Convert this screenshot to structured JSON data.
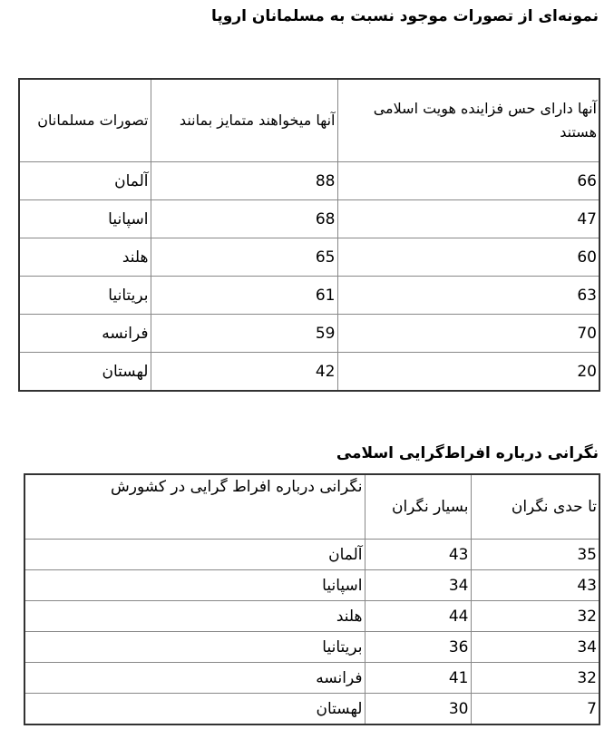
{
  "table1": {
    "title": "نمونه‌ای از تصورات موجود نسبت به مسلمانان اروپا",
    "headers": [
      "آنها دارای حس فزاینده هویت اسلامی هستند",
      "آنها میخواهند متمایز بمانند",
      "تصورات مسلمانان"
    ],
    "rows": [
      [
        "66",
        "88",
        "آلمان"
      ],
      [
        "47",
        "68",
        "اسپانیا"
      ],
      [
        "60",
        "65",
        "هلند"
      ],
      [
        "63",
        "61",
        "بریتانیا"
      ],
      [
        "70",
        "59",
        "فرانسه"
      ],
      [
        "20",
        "42",
        "لهستان"
      ]
    ]
  },
  "table2": {
    "title": "نگرانی درباره افراط‌گرایی اسلامی",
    "headers": [
      "تا حدی نگران",
      "بسیار نگران",
      "نگرانی درباره افراط گرایی در کشورش"
    ],
    "rows": [
      [
        "35",
        "43",
        "آلمان"
      ],
      [
        "43",
        "34",
        "اسپانیا"
      ],
      [
        "32",
        "44",
        "هلند"
      ],
      [
        "34",
        "36",
        "بریتانیا"
      ],
      [
        "32",
        "41",
        "فرانسه"
      ],
      [
        "7",
        "30",
        "لهستان"
      ]
    ]
  }
}
